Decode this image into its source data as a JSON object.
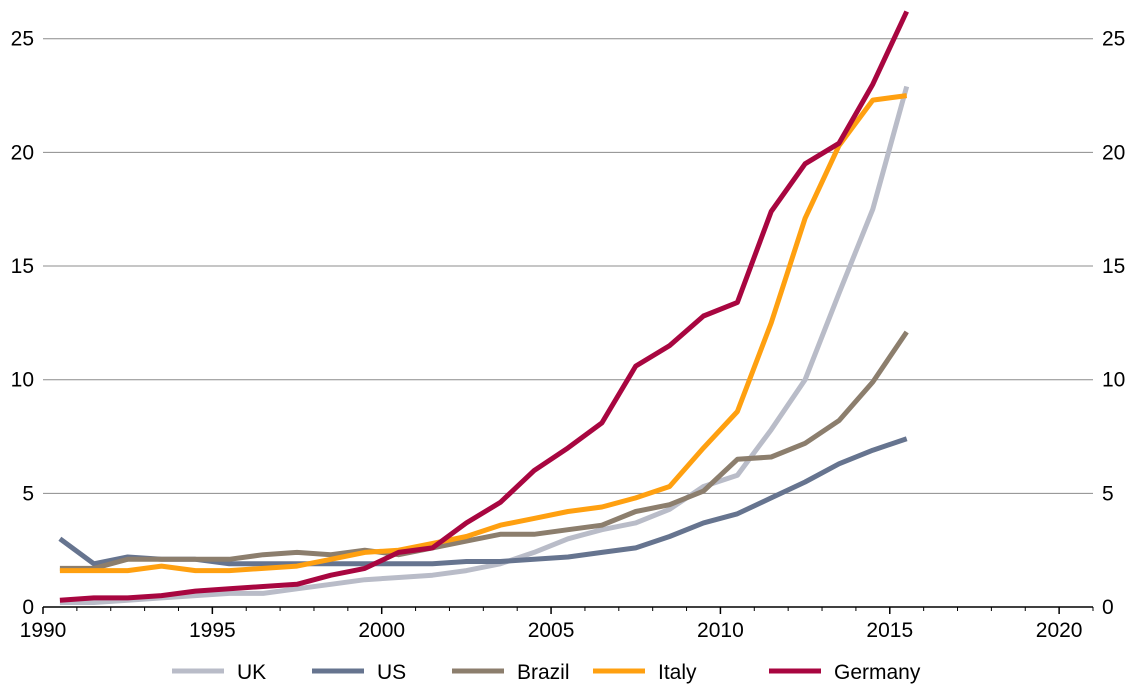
{
  "chart_data": {
    "type": "line",
    "title": "",
    "xlabel": "",
    "ylabel": "",
    "xlim": [
      1990,
      2021
    ],
    "ylim": [
      0,
      26
    ],
    "x_ticks": [
      1990,
      1995,
      2000,
      2005,
      2010,
      2015,
      2020
    ],
    "x_tick_labels": [
      "1990",
      "1995",
      "2000",
      "2005",
      "2010",
      "2015",
      "2020"
    ],
    "y_ticks": [
      0,
      5,
      10,
      15,
      20,
      25
    ],
    "y_tick_labels": [
      "0",
      "5",
      "10",
      "15",
      "20",
      "25"
    ],
    "y_axis_sides": [
      "left",
      "right"
    ],
    "grid": "horizontal",
    "legend_position": "bottom",
    "x": [
      1990.5,
      1991.5,
      1992.5,
      1993.5,
      1994.5,
      1995.5,
      1996.5,
      1997.5,
      1998.5,
      1999.5,
      2000.5,
      2001.5,
      2002.5,
      2003.5,
      2004.5,
      2005.5,
      2006.5,
      2007.5,
      2008.5,
      2009.5,
      2010.5,
      2011.5,
      2012.5,
      2013.5,
      2014.5,
      2015.5
    ],
    "series": [
      {
        "name": "UK",
        "color": "#b9bcc8",
        "values": [
          0.2,
          0.2,
          0.3,
          0.4,
          0.5,
          0.6,
          0.6,
          0.8,
          1.0,
          1.2,
          1.3,
          1.4,
          1.6,
          1.9,
          2.4,
          3.0,
          3.4,
          3.7,
          4.3,
          5.3,
          5.8,
          7.8,
          10.0,
          13.8,
          17.5,
          22.9
        ]
      },
      {
        "name": "US",
        "color": "#66748f",
        "values": [
          3.0,
          1.9,
          2.2,
          2.1,
          2.1,
          1.9,
          1.9,
          1.9,
          1.9,
          1.9,
          1.9,
          1.9,
          2.0,
          2.0,
          2.1,
          2.2,
          2.4,
          2.6,
          3.1,
          3.7,
          4.1,
          4.8,
          5.5,
          6.3,
          6.9,
          7.4
        ]
      },
      {
        "name": "Brazil",
        "color": "#8c7e6d",
        "values": [
          1.7,
          1.7,
          2.1,
          2.1,
          2.1,
          2.1,
          2.3,
          2.4,
          2.3,
          2.5,
          2.3,
          2.6,
          2.9,
          3.2,
          3.2,
          3.4,
          3.6,
          4.2,
          4.5,
          5.1,
          6.5,
          6.6,
          7.2,
          8.2,
          9.9,
          12.1
        ]
      },
      {
        "name": "Italy",
        "color": "#ffa010",
        "values": [
          1.6,
          1.6,
          1.6,
          1.8,
          1.6,
          1.6,
          1.7,
          1.8,
          2.1,
          2.4,
          2.5,
          2.8,
          3.1,
          3.6,
          3.9,
          4.2,
          4.4,
          4.8,
          5.3,
          7.0,
          8.6,
          12.5,
          17.1,
          20.3,
          22.3,
          22.5
        ]
      },
      {
        "name": "Germany",
        "color": "#a80640",
        "values": [
          0.3,
          0.4,
          0.4,
          0.5,
          0.7,
          0.8,
          0.9,
          1.0,
          1.4,
          1.7,
          2.4,
          2.6,
          3.7,
          4.6,
          6.0,
          7.0,
          8.1,
          10.6,
          11.5,
          12.8,
          13.4,
          17.4,
          19.5,
          20.4,
          23.0,
          26.2
        ]
      }
    ]
  }
}
